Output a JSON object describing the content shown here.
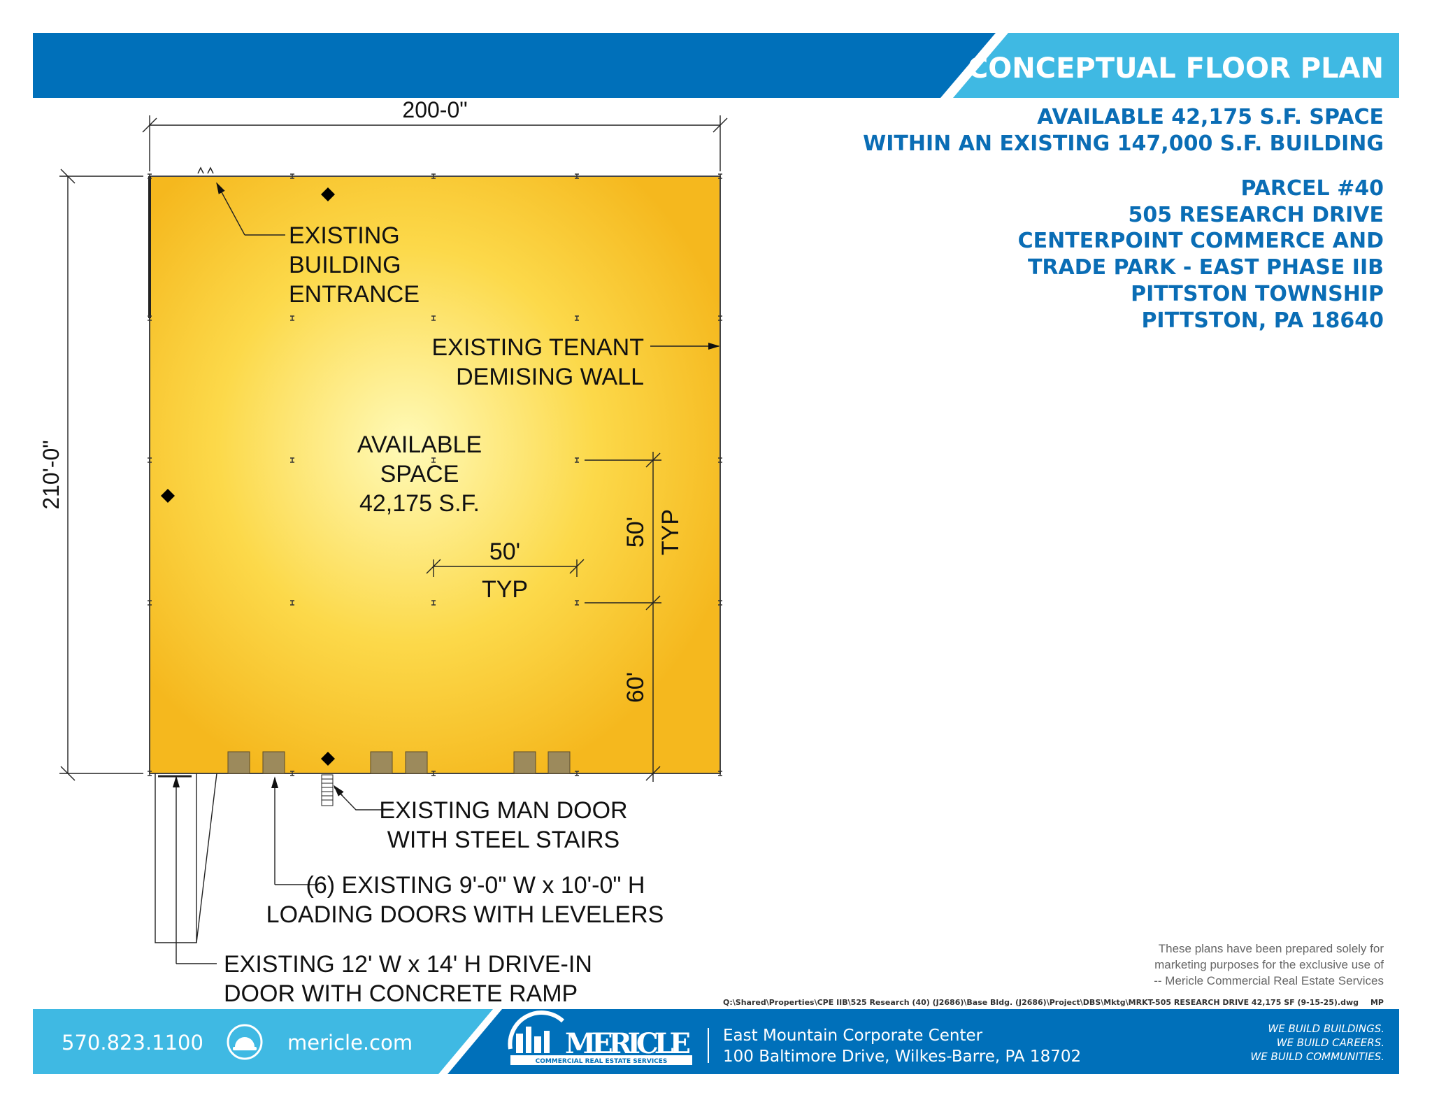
{
  "header": {
    "title": "CONCEPTUAL FLOOR PLAN",
    "colors": {
      "dark_blue": "#0070BA",
      "light_blue": "#3FB9E3"
    }
  },
  "info": {
    "lines": [
      "AVAILABLE 42,175 S.F. SPACE",
      "WITHIN AN EXISTING 147,000 S.F. BUILDING",
      "PARCEL #40",
      "505 RESEARCH DRIVE",
      "CENTERPOINT COMMERCE AND",
      "TRADE PARK - EAST PHASE IIB",
      "PITTSTON TOWNSHIP",
      "PITTSTON, PA 18640"
    ]
  },
  "plan": {
    "fill_color": "#F7C325",
    "width_dim": "200-0\"",
    "height_dim": "210'-0\"",
    "entrance": [
      "EXISTING",
      "BUILDING",
      "ENTRANCE"
    ],
    "demising": [
      "EXISTING TENANT",
      "DEMISING WALL"
    ],
    "available": [
      "AVAILABLE",
      "SPACE",
      "42,175 S.F."
    ],
    "bay_width": "50'",
    "bay_width_typ": "TYP",
    "bay_depth": "50'",
    "bay_depth_typ": "TYP",
    "end_bay": "60'",
    "man_door": [
      "EXISTING MAN DOOR",
      "WITH STEEL STAIRS"
    ],
    "loading": [
      "(6) EXISTING 9'-0\" W x 10'-0\" H",
      "LOADING DOORS WITH LEVELERS"
    ],
    "drive_in": [
      "EXISTING 12' W x 14' H DRIVE-IN",
      "DOOR WITH CONCRETE RAMP"
    ]
  },
  "disclaimer": [
    "These plans have been prepared solely for",
    "marketing purposes for the exclusive use of",
    "-- Mericle Commercial Real Estate Services"
  ],
  "file_path": "Q:\\Shared\\Properties\\CPE IIB\\525 Research (40) (J2686)\\Base Bldg. (J2686)\\Project\\DBS\\Mktg\\MRKT-505 RESEARCH DRIVE 42,175 SF (9-15-25).dwg",
  "file_initials": "MP",
  "footer": {
    "phone": "570.823.1100",
    "website": "mericle.com",
    "logo_name": "MERICLE",
    "logo_sub": "COMMERCIAL REAL ESTATE SERVICES",
    "address1": "East Mountain Corporate Center",
    "address2": "100 Baltimore Drive, Wilkes-Barre, PA 18702",
    "taglines": [
      "WE BUILD BUILDINGS.",
      "WE BUILD CAREERS.",
      "WE BUILD COMMUNITIES."
    ],
    "icon": "hard-hat-icon"
  }
}
